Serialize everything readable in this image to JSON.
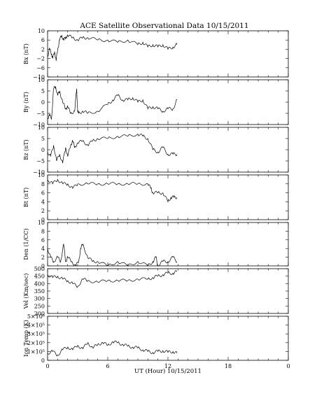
{
  "title": "ACE Satellite Observational Data   10/15/2011",
  "xlabel": "UT (Hour)  10/15/2011",
  "x_tick_labels": [
    "0",
    "6",
    "12",
    "18",
    "0"
  ],
  "colors": {
    "line": "#000000",
    "background": "#ffffff"
  },
  "chart_data": [
    {
      "type": "line",
      "ylabel": "Bx (nT)",
      "xlim": [
        0,
        24
      ],
      "ylim": [
        -10,
        10
      ],
      "y_ticks": [
        -10,
        -8,
        -6,
        -4,
        -2,
        0,
        2,
        4,
        6,
        8,
        10
      ],
      "y_tick_labels": [
        "10",
        "6",
        "2",
        "−2",
        "−6",
        "−10"
      ],
      "x": [
        0.0,
        0.2,
        0.4,
        0.5,
        0.7,
        0.85,
        1.0,
        1.2,
        1.4,
        1.6,
        1.8,
        2.0,
        2.5,
        3.0,
        3.5,
        4.0,
        5.0,
        6.0,
        7.0,
        8.0,
        9.0,
        9.5,
        10.0,
        10.5,
        11.0,
        11.5,
        12.0,
        12.5,
        12.9
      ],
      "y": [
        -1,
        2,
        0,
        -2,
        1,
        -3,
        2,
        6,
        8,
        6,
        7,
        8,
        7,
        6,
        7,
        7,
        6,
        6,
        5,
        6,
        4,
        5,
        3,
        4,
        3,
        4,
        2,
        3,
        4
      ]
    },
    {
      "type": "line",
      "ylabel": "By (nT)",
      "xlim": [
        0,
        24
      ],
      "ylim": [
        -10,
        10
      ],
      "y_tick_labels": [
        "10",
        "5",
        "0",
        "−5",
        "−10"
      ],
      "x": [
        0.0,
        0.2,
        0.4,
        0.6,
        0.8,
        1.0,
        1.2,
        1.5,
        1.8,
        2.0,
        2.3,
        2.7,
        2.9,
        3.0,
        3.1,
        3.5,
        4.0,
        5.0,
        6.0,
        6.5,
        7.0,
        7.5,
        8.0,
        8.5,
        9.0,
        9.5,
        10.0,
        10.5,
        11.0,
        11.5,
        12.0,
        12.5,
        12.9
      ],
      "y": [
        -7,
        -6,
        -7,
        6,
        7,
        3,
        5,
        0,
        -3,
        -2,
        -5,
        -4,
        6,
        -4,
        -5,
        -4,
        -5,
        -4,
        -1,
        1,
        3,
        1,
        1,
        2,
        0,
        1,
        -3,
        -2,
        -3,
        -4,
        -3,
        -3,
        1
      ]
    },
    {
      "type": "line",
      "ylabel": "Bz (nT)",
      "xlim": [
        0,
        24
      ],
      "ylim": [
        -10,
        10
      ],
      "y_tick_labels": [
        "10",
        "5",
        "0",
        "−5",
        "−10"
      ],
      "x": [
        0.0,
        0.3,
        0.6,
        0.9,
        1.2,
        1.5,
        1.8,
        2.0,
        2.3,
        2.5,
        2.7,
        3.0,
        3.5,
        4.0,
        4.5,
        5.0,
        6.0,
        7.0,
        8.0,
        9.0,
        9.5,
        10.0,
        10.5,
        11.0,
        11.5,
        12.0,
        12.5,
        12.9
      ],
      "y": [
        -1,
        -3,
        2,
        -5,
        -2,
        -6,
        1,
        -3,
        2,
        4,
        1,
        3,
        4,
        2,
        4,
        5,
        5,
        6,
        6,
        7,
        6,
        5,
        0,
        -1,
        1,
        -2,
        -2,
        -2
      ]
    },
    {
      "type": "line",
      "ylabel": "Bt (nT)",
      "xlim": [
        0,
        24
      ],
      "ylim": [
        0,
        10
      ],
      "y_tick_labels": [
        "10",
        "8",
        "6",
        "4",
        "2",
        "0"
      ],
      "x": [
        0.0,
        0.5,
        1.0,
        1.5,
        2.0,
        2.5,
        3.0,
        4.0,
        5.0,
        6.0,
        7.0,
        8.0,
        9.0,
        10.0,
        10.3,
        10.5,
        11.0,
        11.5,
        12.0,
        12.3,
        12.6,
        12.9
      ],
      "y": [
        9,
        8,
        9,
        8,
        8,
        7,
        8,
        8,
        8,
        8,
        8,
        8,
        8,
        8,
        7,
        6,
        6,
        6,
        4,
        5,
        5,
        5
      ]
    },
    {
      "type": "line",
      "ylabel": "Den (1/CC)",
      "xlim": [
        0,
        24
      ],
      "ylim": [
        0,
        10
      ],
      "y_tick_labels": [
        "10",
        "8",
        "6",
        "4",
        "2",
        "0"
      ],
      "x": [
        0.0,
        0.3,
        0.6,
        1.0,
        1.3,
        1.6,
        1.8,
        2.0,
        2.4,
        2.8,
        3.1,
        3.3,
        3.5,
        4.0,
        4.5,
        5.0,
        6.0,
        7.0,
        8.0,
        9.0,
        10.0,
        10.5,
        10.8,
        11.0,
        11.5,
        12.0,
        12.5,
        12.9
      ],
      "y": [
        4,
        2,
        1,
        2,
        1,
        5,
        1,
        2,
        1,
        0,
        1,
        4,
        5,
        2,
        1,
        1,
        0,
        1,
        0,
        1,
        0,
        1,
        2,
        0,
        1,
        1,
        2,
        1
      ]
    },
    {
      "type": "line",
      "ylabel": "Vel (Km/sec)",
      "xlim": [
        0,
        24
      ],
      "ylim": [
        200,
        500
      ],
      "y_tick_labels": [
        "500",
        "450",
        "400",
        "350",
        "300",
        "250",
        "200"
      ],
      "x": [
        0.0,
        0.5,
        1.0,
        1.5,
        2.0,
        2.5,
        3.0,
        3.5,
        4.0,
        5.0,
        6.0,
        7.0,
        8.0,
        9.0,
        10.0,
        10.5,
        11.0,
        11.5,
        12.0,
        12.5,
        12.9
      ],
      "y": [
        460,
        440,
        450,
        430,
        420,
        400,
        380,
        430,
        420,
        410,
        420,
        420,
        420,
        430,
        430,
        440,
        450,
        460,
        470,
        470,
        480
      ]
    },
    {
      "type": "line",
      "ylabel": "Ion Temp (K)",
      "xlim": [
        0,
        24
      ],
      "ylim": [
        0,
        500000
      ],
      "y_tick_labels": [
        "5×10⁵",
        "4×10⁵",
        "3×10⁵",
        "2×10⁵",
        "1×10⁵",
        "0"
      ],
      "x": [
        0.0,
        0.5,
        1.0,
        1.5,
        2.0,
        2.5,
        3.0,
        3.5,
        4.0,
        4.5,
        5.0,
        5.5,
        6.0,
        6.5,
        7.0,
        7.5,
        8.0,
        8.5,
        9.0,
        9.5,
        10.0,
        10.5,
        11.0,
        11.5,
        12.0,
        12.5,
        12.9
      ],
      "y": [
        80000,
        100000,
        60000,
        120000,
        150000,
        120000,
        170000,
        130000,
        200000,
        140000,
        180000,
        200000,
        170000,
        210000,
        200000,
        180000,
        160000,
        150000,
        140000,
        120000,
        100000,
        90000,
        100000,
        110000,
        90000,
        100000,
        80000
      ]
    }
  ]
}
